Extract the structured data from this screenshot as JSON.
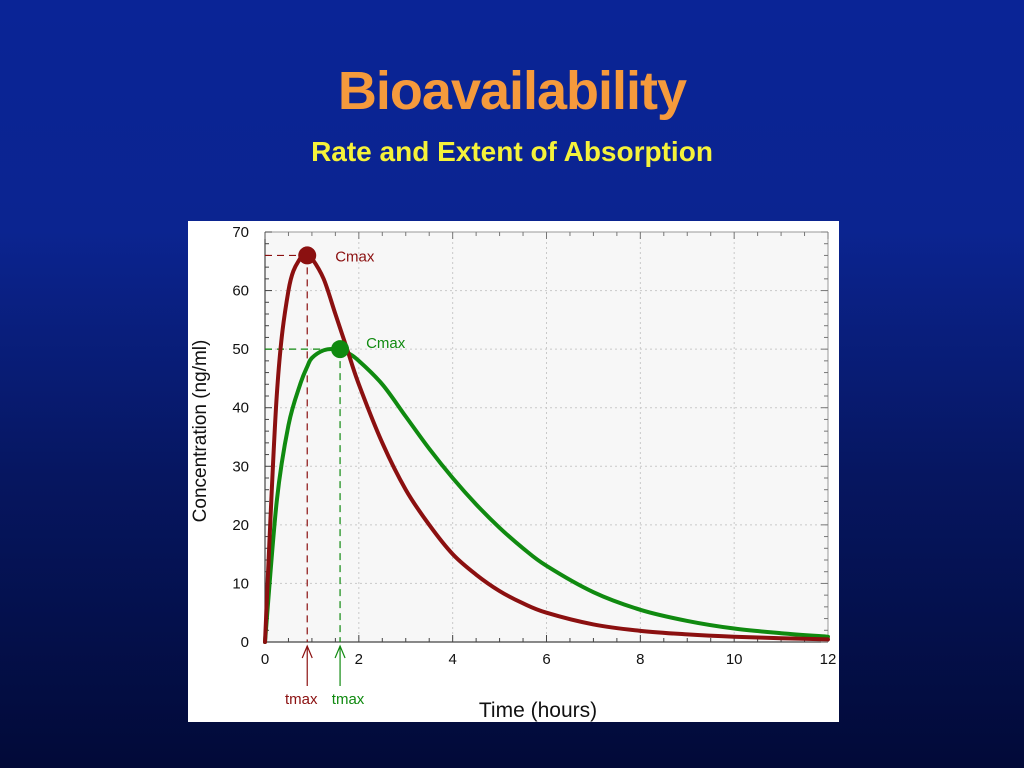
{
  "title": "Bioavailability",
  "subtitle": "Rate and Extent of Absorption",
  "colors": {
    "title": "#f59a3c",
    "subtitle": "#f5f23a",
    "series_a": "#8b1010",
    "series_b": "#108a10"
  },
  "chart_data": {
    "type": "line",
    "xlabel": "Time (hours)",
    "ylabel": "Concentration (ng/ml)",
    "xlim": [
      0,
      12
    ],
    "ylim": [
      0,
      70
    ],
    "xticks": [
      0,
      2,
      4,
      6,
      8,
      10,
      12
    ],
    "yticks": [
      0,
      10,
      20,
      30,
      40,
      50,
      60,
      70
    ],
    "grid": true,
    "x": [
      0,
      0.25,
      0.5,
      0.75,
      0.9,
      1,
      1.25,
      1.5,
      1.75,
      2,
      2.5,
      3,
      3.5,
      4,
      4.5,
      5,
      5.5,
      6,
      7,
      8,
      9,
      10,
      11,
      12
    ],
    "series": [
      {
        "values": [
          0,
          42,
          60,
          65.5,
          66,
          65.5,
          62,
          56,
          50,
          44,
          34,
          26,
          20,
          15,
          11.5,
          8.7,
          6.6,
          5,
          3,
          1.9,
          1.3,
          0.9,
          0.65,
          0.45
        ],
        "peak": {
          "x": 0.9,
          "y": 66
        },
        "peak_label": "Cmax",
        "tmax_label": "tmax"
      },
      {
        "values": [
          0,
          24,
          37,
          44,
          47,
          48.5,
          49.8,
          50,
          49.4,
          48,
          44,
          38.5,
          33,
          28,
          23.5,
          19.5,
          16,
          13,
          8.5,
          5.5,
          3.6,
          2.3,
          1.5,
          0.9
        ],
        "peak": {
          "x": 1.6,
          "y": 50
        },
        "peak_label": "Cmax",
        "tmax_label": "tmax"
      }
    ]
  }
}
